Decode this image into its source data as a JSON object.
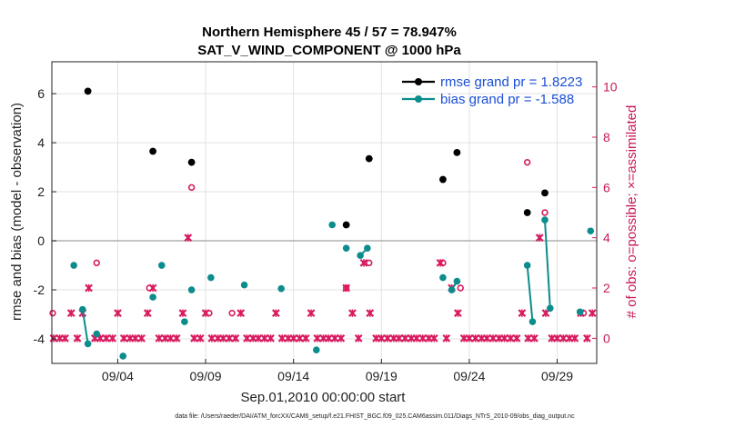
{
  "chart_data": {
    "type": "scatter",
    "title_line1": "Northern Hemisphere 45 / 57 = 78.947%",
    "title_line2": "SAT_V_WIND_COMPONENT @ 1000 hPa",
    "xlabel": "Sep.01,2010 00:00:00 start",
    "ylabel_left": "rmse and bias (model - observation)",
    "ylabel_right": "# of obs: o=possible; ×=assimilated",
    "footnote": "data file: /Users/raeder/DAI/ATM_forcXX/CAM6_setup/f.e21.FHIST_BGC.f09_025.CAM6assim.011/Diags_NTrS_2010-09/obs_diag_output.nc",
    "x_tick_labels": [
      "09/04",
      "09/09",
      "09/14",
      "09/19",
      "09/24",
      "09/29"
    ],
    "x_tick_days": [
      4,
      9,
      14,
      19,
      24,
      29
    ],
    "xlim_days": [
      0.25,
      31.25
    ],
    "ylim_left": [
      -5,
      7.3
    ],
    "y_ticks_left": [
      -4,
      -2,
      0,
      2,
      4,
      6
    ],
    "y_tick_labels_left": [
      "-4",
      "-2",
      "0",
      "2",
      "4",
      "6"
    ],
    "ylim_right": [
      -1,
      11
    ],
    "y_ticks_right": [
      0,
      2,
      4,
      6,
      8,
      10
    ],
    "y_tick_labels_right": [
      "0",
      "2",
      "4",
      "6",
      "8",
      "10"
    ],
    "legend": {
      "position": "top-right",
      "rmse_label": "rmse grand pr = 1.8223",
      "bias_label": "bias grand pr = -1.588"
    },
    "colors": {
      "rmse": "#000000",
      "bias": "#0c8c8c",
      "obs": "#d81b60",
      "zero_line": "#b0b0b0",
      "grid": "#e2e2e2"
    },
    "series": [
      {
        "name": "rmse grand pr = 1.8223",
        "x": [
          2.3,
          6.0,
          8.2,
          17.0,
          18.3,
          22.5,
          23.3,
          27.3,
          28.3
        ],
        "y": [
          6.1,
          3.65,
          3.2,
          0.65,
          3.35,
          2.5,
          3.6,
          1.15,
          1.95
        ]
      },
      {
        "name": "bias grand pr = -1.588",
        "segments": [
          {
            "x": [
              2.0,
              2.3
            ],
            "y": [
              -2.8,
              -4.2
            ]
          },
          {
            "x": [
              27.3,
              27.6
            ],
            "y": [
              -1.0,
              -3.3
            ]
          },
          {
            "x": [
              28.3,
              28.6
            ],
            "y": [
              0.85,
              -2.75
            ]
          },
          {
            "x": [
              17.8,
              18.2
            ],
            "y": [
              -0.6,
              -0.3
            ]
          },
          {
            "x": [
              23.0,
              23.3
            ],
            "y": [
              -2.0,
              -1.65
            ]
          }
        ],
        "x": [
          1.5,
          2.0,
          2.3,
          2.8,
          4.3,
          6.0,
          6.5,
          7.8,
          8.2,
          9.3,
          11.2,
          13.3,
          15.3,
          16.2,
          17.0,
          17.8,
          18.2,
          22.5,
          23.0,
          23.3,
          27.3,
          27.6,
          28.3,
          28.6,
          30.3,
          30.9
        ],
        "y": [
          -1.0,
          -2.8,
          -4.2,
          -3.8,
          -4.7,
          -2.3,
          -1.0,
          -3.3,
          -2.0,
          -1.5,
          -1.8,
          -1.95,
          -4.45,
          0.65,
          -0.3,
          -0.6,
          -0.3,
          -1.5,
          -2.0,
          -1.65,
          -1.0,
          -3.3,
          0.85,
          -2.75,
          -2.9,
          0.4
        ]
      },
      {
        "name": "possible",
        "x": [
          0.3,
          2.8,
          5.8,
          8.2,
          9.2,
          10.5,
          17.0,
          18.3,
          22.5,
          23.5,
          27.3,
          28.3,
          30.5
        ],
        "y": [
          1,
          3,
          2,
          6,
          1,
          1,
          2,
          3,
          3,
          2,
          7,
          5,
          1
        ]
      },
      {
        "name": "assimilated",
        "x": [
          0.35,
          0.7,
          1.0,
          1.35,
          1.7,
          2.0,
          2.35,
          2.7,
          3.0,
          3.35,
          3.7,
          4.0,
          4.35,
          4.7,
          5.0,
          5.35,
          5.7,
          6.0,
          6.35,
          6.7,
          7.0,
          7.35,
          7.7,
          8.0,
          8.35,
          8.7,
          9.0,
          9.35,
          9.7,
          10.0,
          10.35,
          10.7,
          11.0,
          11.35,
          11.7,
          12.0,
          12.35,
          12.7,
          13.0,
          13.35,
          13.7,
          14.0,
          14.35,
          14.7,
          15.0,
          15.35,
          15.7,
          16.0,
          16.35,
          16.7,
          17.0,
          17.35,
          17.7,
          18.0,
          18.35,
          18.7,
          19.0,
          19.35,
          19.7,
          20.0,
          20.35,
          20.7,
          21.0,
          21.35,
          21.7,
          22.0,
          22.35,
          22.7,
          23.0,
          23.35,
          23.7,
          24.0,
          24.35,
          24.7,
          25.0,
          25.35,
          25.7,
          26.0,
          26.35,
          26.7,
          27.0,
          27.35,
          27.7,
          28.0,
          28.35,
          28.7,
          29.0,
          29.35,
          29.7,
          30.0,
          30.35,
          30.7,
          31.0
        ],
        "y": [
          0,
          0,
          0,
          1,
          0,
          1,
          2,
          0,
          0,
          0,
          0,
          1,
          0,
          0,
          0,
          0,
          1,
          2,
          0,
          0,
          0,
          0,
          1,
          4,
          0,
          0,
          1,
          0,
          0,
          0,
          0,
          0,
          1,
          0,
          0,
          0,
          0,
          0,
          1,
          0,
          0,
          0,
          0,
          0,
          1,
          0,
          0,
          0,
          0,
          0,
          2,
          1,
          0,
          3,
          1,
          0,
          0,
          0,
          0,
          0,
          0,
          0,
          0,
          0,
          0,
          0,
          3,
          0,
          2,
          1,
          0,
          0,
          0,
          0,
          0,
          0,
          0,
          0,
          0,
          0,
          1,
          0,
          0,
          4,
          1,
          0,
          0,
          0,
          0,
          0,
          1,
          0,
          1
        ]
      }
    ]
  }
}
